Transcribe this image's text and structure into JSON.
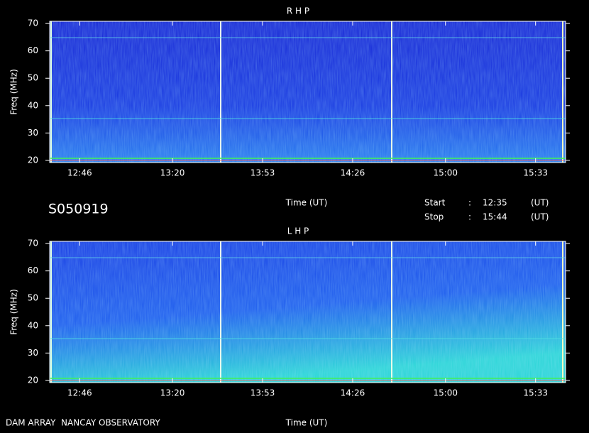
{
  "chart_data": [
    {
      "type": "spectrogram",
      "title": "R H P",
      "xlabel": "Time (UT)",
      "ylabel": "Freq (MHz)",
      "ylim": [
        19.2,
        70.8
      ],
      "yticks": [
        20,
        30,
        40,
        50,
        60,
        70
      ],
      "xlim": [
        755,
        944
      ],
      "xticks": [
        {
          "value": 766,
          "label": "12:46"
        },
        {
          "value": 800,
          "label": "13:20"
        },
        {
          "value": 833,
          "label": "13:53"
        },
        {
          "value": 866,
          "label": "14:26"
        },
        {
          "value": 900,
          "label": "15:00"
        },
        {
          "value": 933,
          "label": "15:33"
        }
      ]
    },
    {
      "type": "spectrogram",
      "title": "L H P",
      "xlabel": "Time (UT)",
      "ylabel": "Freq (MHz)",
      "ylim": [
        19.2,
        70.8
      ],
      "yticks": [
        20,
        30,
        40,
        50,
        60,
        70
      ],
      "xlim": [
        755,
        944
      ],
      "xticks": [
        {
          "value": 766,
          "label": "12:46"
        },
        {
          "value": 800,
          "label": "13:20"
        },
        {
          "value": 833,
          "label": "13:53"
        },
        {
          "value": 866,
          "label": "14:26"
        },
        {
          "value": 900,
          "label": "15:00"
        },
        {
          "value": 933,
          "label": "15:33"
        }
      ]
    }
  ],
  "header": {
    "id": "S050919",
    "start_label": "Start",
    "stop_label": "Stop",
    "separator": ":",
    "start": "12:35",
    "stop": "15:44",
    "unit": "(UT)"
  },
  "footer": "DAM ARRAY  NANCAY OBSERVATORY"
}
